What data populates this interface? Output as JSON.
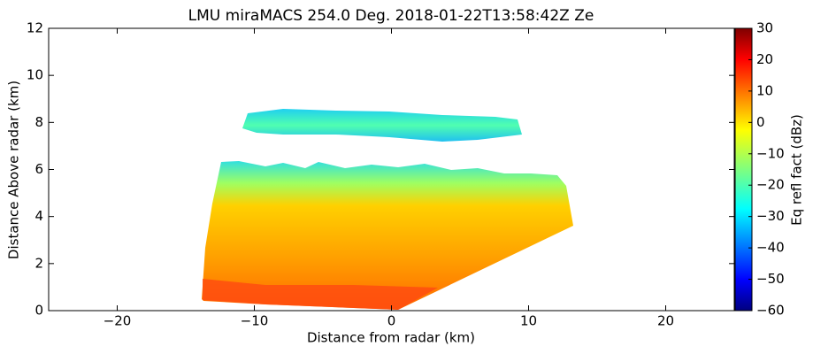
{
  "chart_data": {
    "type": "image",
    "title": "LMU miraMACS 254.0 Deg. 2018-01-22T13:58:42Z  Ze",
    "xlabel": "Distance from radar (km)",
    "ylabel": "Distance Above radar  (km)",
    "xlim": [
      -25,
      25
    ],
    "xticks": [
      {
        "value": -20,
        "label": "−20"
      },
      {
        "value": -10,
        "label": "−10"
      },
      0,
      10,
      20
    ],
    "ylim": [
      0,
      12
    ],
    "yticks": [
      0,
      2,
      4,
      6,
      8,
      10,
      12
    ],
    "colorbar": {
      "label": "Eq refl fact (dBz)",
      "lim": [
        -60,
        30
      ],
      "ticks": [
        {
          "value": -60,
          "label": "−60"
        },
        {
          "value": -50,
          "label": "−50"
        },
        {
          "value": -40,
          "label": "−40"
        },
        {
          "value": -30,
          "label": "−30"
        },
        {
          "value": -20,
          "label": "−20"
        },
        {
          "value": -10,
          "label": "−10"
        },
        0,
        10,
        20,
        30
      ]
    }
  }
}
